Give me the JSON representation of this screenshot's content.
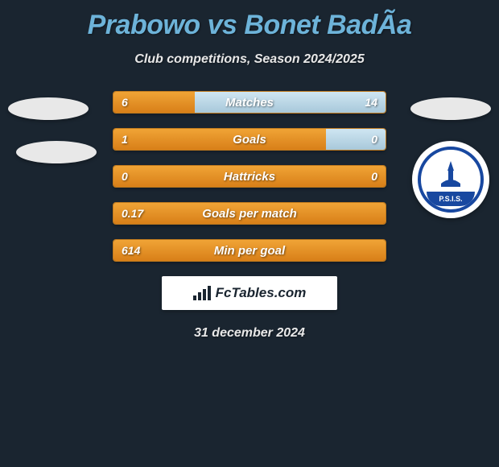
{
  "title": "Prabowo vs Bonet BadÃ­a",
  "subtitle": "Club competitions, Season 2024/2025",
  "date": "31 december 2024",
  "branding": {
    "text": "FcTables.com"
  },
  "club_logo": {
    "text": "P.S.I.S.",
    "border_color": "#1848a0"
  },
  "colors": {
    "background": "#1a2530",
    "title": "#6db3d9",
    "text": "#e8e8e8",
    "bar_left_top": "#f0a436",
    "bar_left_bottom": "#d87f18",
    "bar_right_top": "#cfe6f2",
    "bar_right_bottom": "#a8c8da",
    "bar_border": "#c07a1e"
  },
  "bars": [
    {
      "label": "Matches",
      "left_val": "6",
      "right_val": "14",
      "left_pct": 30,
      "right_pct": 70
    },
    {
      "label": "Goals",
      "left_val": "1",
      "right_val": "0",
      "left_pct": 78,
      "right_pct": 22
    },
    {
      "label": "Hattricks",
      "left_val": "0",
      "right_val": "0",
      "left_pct": 100,
      "right_pct": 0
    },
    {
      "label": "Goals per match",
      "left_val": "0.17",
      "right_val": "",
      "left_pct": 100,
      "right_pct": 0
    },
    {
      "label": "Min per goal",
      "left_val": "614",
      "right_val": "",
      "left_pct": 100,
      "right_pct": 0
    }
  ]
}
